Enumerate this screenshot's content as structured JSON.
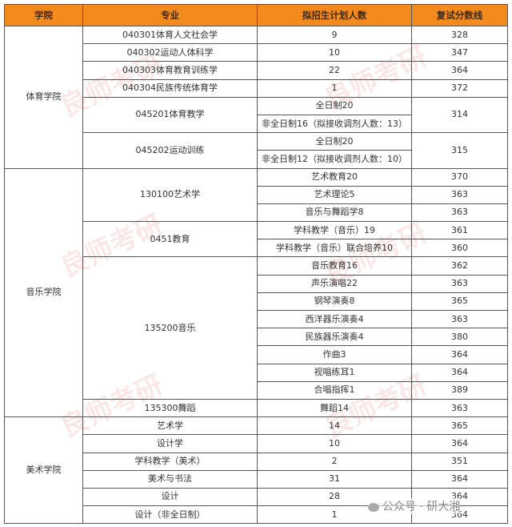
{
  "headers": [
    "学院",
    "专业",
    "拟招生计划人数",
    "复试分数线"
  ],
  "colors": {
    "header_bg": "#f28a1e",
    "border": "#555555"
  },
  "colleges": [
    {
      "name": "体育学院",
      "majors": [
        {
          "name": "040301体育人文社会学",
          "entries": [
            {
              "plan": "9",
              "score": "328"
            }
          ]
        },
        {
          "name": "040302运动人体科学",
          "entries": [
            {
              "plan": "10",
              "score": "347"
            }
          ]
        },
        {
          "name": "040303体育教育训练学",
          "entries": [
            {
              "plan": "22",
              "score": "364"
            }
          ]
        },
        {
          "name": "040304民族传统体育学",
          "entries": [
            {
              "plan": "1",
              "score": "372"
            }
          ]
        },
        {
          "name": "045201体育教学",
          "score": "314",
          "entries": [
            {
              "plan": "全日制20"
            },
            {
              "plan": "非全日制16（拟接收调剂人数：13）"
            }
          ]
        },
        {
          "name": "045202运动训练",
          "score": "315",
          "entries": [
            {
              "plan": "全日制20"
            },
            {
              "plan": "非全日制12（拟接收调剂人数：10）"
            }
          ]
        }
      ]
    },
    {
      "name": "音乐学院",
      "majors": [
        {
          "name": "130100艺术学",
          "entries": [
            {
              "plan": "艺术教育20",
              "score": "370"
            },
            {
              "plan": "艺术理论5",
              "score": "363"
            },
            {
              "plan": "音乐与舞蹈学8",
              "score": "363"
            }
          ]
        },
        {
          "name": "0451教育",
          "entries": [
            {
              "plan": "学科教学（音乐）19",
              "score": "361"
            },
            {
              "plan": "学科教学（音乐）联合培养10",
              "score": "360"
            }
          ]
        },
        {
          "name": "135200音乐",
          "entries": [
            {
              "plan": "音乐教育16",
              "score": "362"
            },
            {
              "plan": "声乐演唱22",
              "score": "363"
            },
            {
              "plan": "钢琴演奏8",
              "score": "365"
            },
            {
              "plan": "西洋器乐演奏4",
              "score": "363"
            },
            {
              "plan": "民族器乐演奏4",
              "score": "380"
            },
            {
              "plan": "作曲3",
              "score": "364"
            },
            {
              "plan": "视唱练耳1",
              "score": "364"
            },
            {
              "plan": "合唱指挥1",
              "score": "389"
            }
          ]
        },
        {
          "name": "135300舞蹈",
          "entries": [
            {
              "plan": "舞蹈14",
              "score": "363"
            }
          ]
        }
      ]
    },
    {
      "name": "美术学院",
      "majors": [
        {
          "name": "艺术学",
          "entries": [
            {
              "plan": "14",
              "score": "365"
            }
          ]
        },
        {
          "name": "设计学",
          "entries": [
            {
              "plan": "10",
              "score": "364"
            }
          ]
        },
        {
          "name": "学科教学（美术）",
          "entries": [
            {
              "plan": "2",
              "score": "351"
            }
          ]
        },
        {
          "name": "美术与书法",
          "entries": [
            {
              "plan": "31",
              "score": "364"
            }
          ]
        },
        {
          "name": "设计",
          "entries": [
            {
              "plan": "28",
              "score": "364"
            }
          ]
        },
        {
          "name": "设计（非全日制）",
          "entries": [
            {
              "plan": "1",
              "score": "364"
            }
          ]
        }
      ]
    }
  ],
  "watermark": "良师考研",
  "footer_badge": {
    "icon": "wechat-icon",
    "text": "公众号 · 研大湘"
  }
}
